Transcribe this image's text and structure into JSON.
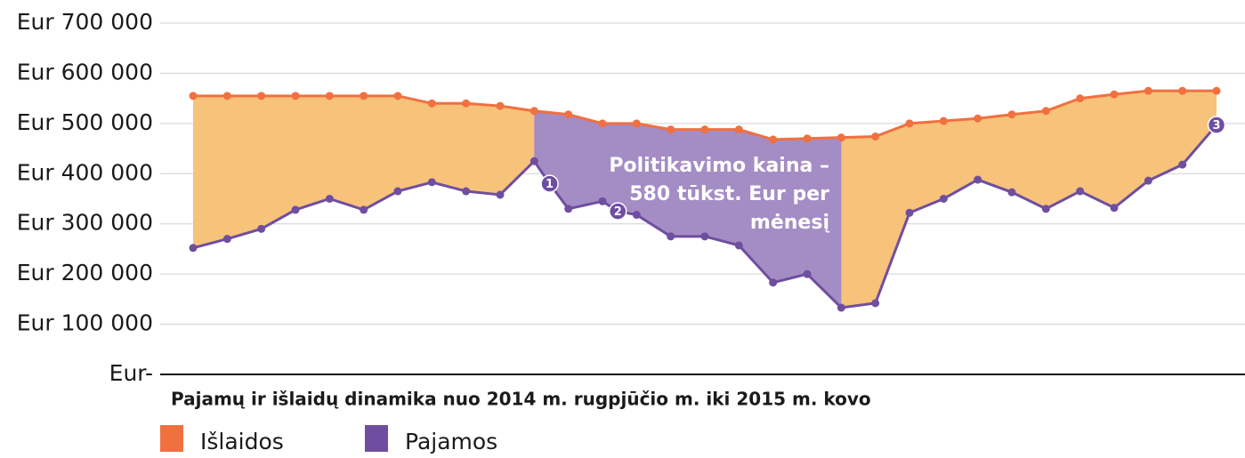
{
  "chart_data": {
    "type": "area-line",
    "caption": "Pajamų ir išlaidų dinamika nuo 2014 m. rugpjūčio m. iki 2015 m. kovo",
    "xlim": [
      0,
      30
    ],
    "ylim": [
      0,
      700000
    ],
    "yticks": [
      {
        "value": 0,
        "label": "Eur-"
      },
      {
        "value": 100000,
        "label": "Eur 100 000"
      },
      {
        "value": 200000,
        "label": "Eur 200 000"
      },
      {
        "value": 300000,
        "label": "Eur 300 000"
      },
      {
        "value": 400000,
        "label": "Eur 400 000"
      },
      {
        "value": 500000,
        "label": "Eur 500 000"
      },
      {
        "value": 600000,
        "label": "Eur 600 000"
      },
      {
        "value": 700000,
        "label": "Eur 700 000"
      }
    ],
    "grid": true,
    "fill_color": "#f7c27a",
    "series": [
      {
        "name": "Išlaidos",
        "color": "#f07040",
        "x": [
          0,
          1,
          2,
          3,
          4,
          5,
          6,
          7,
          8,
          9,
          10,
          11,
          12,
          13,
          14,
          15,
          16,
          17,
          18,
          19,
          20,
          21,
          22,
          23,
          24,
          25,
          26,
          27,
          28,
          29,
          30
        ],
        "values": [
          555000,
          555000,
          555000,
          555000,
          555000,
          555000,
          555000,
          540000,
          540000,
          535000,
          525000,
          518000,
          500000,
          500000,
          488000,
          488000,
          488000,
          468000,
          470000,
          472000,
          474000,
          500000,
          505000,
          510000,
          518000,
          525000,
          550000,
          558000,
          565000,
          565000,
          565000
        ]
      },
      {
        "name": "Pajamos",
        "color": "#6f4ea0",
        "x": [
          0,
          1,
          2,
          3,
          4,
          5,
          6,
          7,
          8,
          9,
          10,
          10.45,
          11,
          12,
          12.45,
          13,
          14,
          15,
          16,
          17,
          18,
          19,
          20,
          21,
          22,
          23,
          24,
          25,
          26,
          27,
          28,
          29,
          30
        ],
        "values": [
          252000,
          270000,
          290000,
          328000,
          350000,
          328000,
          365000,
          383000,
          365000,
          358000,
          425000,
          380000,
          330000,
          345000,
          325000,
          318000,
          275000,
          275000,
          257000,
          183000,
          200000,
          133000,
          142000,
          322000,
          350000,
          388000,
          363000,
          330000,
          365000,
          332000,
          386000,
          418000,
          497000
        ]
      }
    ],
    "highlight": {
      "xrange": [
        10,
        19
      ],
      "color": "#a48cc4",
      "lines": [
        "Politikavimo kaina –",
        "580 tūkst. Eur per",
        "mėnesį"
      ]
    },
    "markers": [
      {
        "label": "1",
        "x": 10.45,
        "y": 380000
      },
      {
        "label": "2",
        "x": 12.45,
        "y": 325000
      },
      {
        "label": "3",
        "x": 30,
        "y": 497000
      }
    ]
  }
}
